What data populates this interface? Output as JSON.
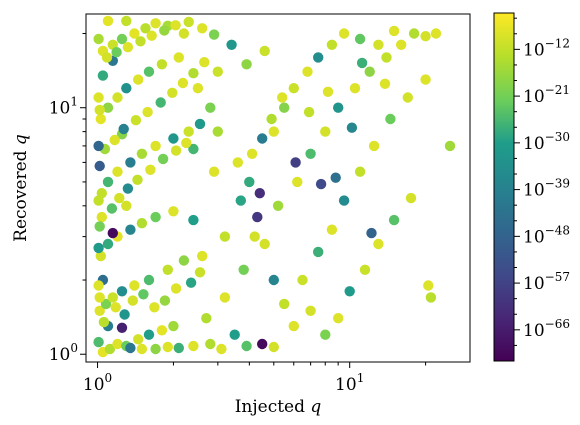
{
  "chart_data": {
    "type": "scatter",
    "title": "",
    "xlabel": "Injected",
    "ylabel": "Recovered",
    "axis_variable": "q",
    "xscale": "log",
    "yscale": "log",
    "xlim": [
      0.9,
      30
    ],
    "ylim": [
      0.93,
      24
    ],
    "x_ticks": [
      {
        "value": 1,
        "label_base": "10",
        "label_exp": "0"
      },
      {
        "value": 10,
        "label_base": "10",
        "label_exp": "1"
      }
    ],
    "y_ticks": [
      {
        "value": 1,
        "label_base": "10",
        "label_exp": "0"
      },
      {
        "value": 10,
        "label_base": "10",
        "label_exp": "1"
      }
    ],
    "grid": false,
    "colormap": "viridis",
    "colorbar": {
      "scale": "log",
      "range_exponent": [
        -72,
        -5
      ],
      "ticks": [
        {
          "exp": -12,
          "label_base": "10",
          "label_exp": "−12"
        },
        {
          "exp": -21,
          "label_base": "10",
          "label_exp": "−21"
        },
        {
          "exp": -30,
          "label_base": "10",
          "label_exp": "−30"
        },
        {
          "exp": -39,
          "label_base": "10",
          "label_exp": "−39"
        },
        {
          "exp": -48,
          "label_base": "10",
          "label_exp": "−48"
        },
        {
          "exp": -57,
          "label_base": "10",
          "label_exp": "−57"
        },
        {
          "exp": -66,
          "label_base": "10",
          "label_exp": "−66"
        }
      ]
    },
    "marker_size": 5.2,
    "points": [
      [
        1.05,
        1.02,
        -8
      ],
      [
        1.12,
        1.05,
        -14
      ],
      [
        1.2,
        1.1,
        -9
      ],
      [
        1.3,
        1.08,
        -22
      ],
      [
        1.45,
        1.15,
        -10
      ],
      [
        1.6,
        1.2,
        -30
      ],
      [
        1.8,
        1.25,
        -8
      ],
      [
        2.0,
        1.3,
        -16
      ],
      [
        1.1,
        1.3,
        -40
      ],
      [
        1.25,
        1.28,
        -65
      ],
      [
        1.02,
        1.5,
        -9
      ],
      [
        1.08,
        1.6,
        -20
      ],
      [
        1.15,
        1.7,
        -11
      ],
      [
        1.25,
        1.8,
        -35
      ],
      [
        1.4,
        1.9,
        -9
      ],
      [
        1.6,
        2.0,
        -25
      ],
      [
        1.9,
        2.2,
        -12
      ],
      [
        2.2,
        2.4,
        -18
      ],
      [
        2.6,
        2.5,
        -9
      ],
      [
        1.05,
        2.0,
        -45
      ],
      [
        1.03,
        2.5,
        -10
      ],
      [
        1.1,
        2.8,
        -28
      ],
      [
        1.2,
        3.0,
        -8
      ],
      [
        1.35,
        3.2,
        -38
      ],
      [
        1.5,
        3.4,
        -14
      ],
      [
        1.7,
        3.6,
        -22
      ],
      [
        2.0,
        3.8,
        -9
      ],
      [
        2.4,
        3.5,
        -30
      ],
      [
        1.15,
        3.1,
        -70
      ],
      [
        1.3,
        4.0,
        -10
      ],
      [
        1.04,
        4.5,
        -12
      ],
      [
        1.1,
        5.0,
        -26
      ],
      [
        1.2,
        5.5,
        -9
      ],
      [
        1.35,
        6.0,
        -40
      ],
      [
        1.5,
        6.5,
        -15
      ],
      [
        1.7,
        7.0,
        -9
      ],
      [
        2.0,
        7.5,
        -32
      ],
      [
        2.3,
        8.0,
        -11
      ],
      [
        1.02,
        5.8,
        -50
      ],
      [
        1.25,
        7.8,
        -19
      ],
      [
        1.03,
        9.0,
        -8
      ],
      [
        1.1,
        10.0,
        -18
      ],
      [
        1.2,
        11.0,
        -10
      ],
      [
        1.3,
        12.0,
        -34
      ],
      [
        1.45,
        13.0,
        -9
      ],
      [
        1.6,
        14.0,
        -24
      ],
      [
        1.8,
        15.0,
        -12
      ],
      [
        2.1,
        16.0,
        -9
      ],
      [
        1.05,
        13.5,
        -28
      ],
      [
        1.15,
        15.5,
        -42
      ],
      [
        1.05,
        17.0,
        -9
      ],
      [
        1.15,
        18.0,
        -11
      ],
      [
        1.25,
        19.0,
        -21
      ],
      [
        1.4,
        20.0,
        -8
      ],
      [
        1.55,
        21.0,
        -13
      ],
      [
        1.7,
        22.0,
        -9
      ],
      [
        1.9,
        21.5,
        -15
      ],
      [
        2.2,
        20.0,
        -10
      ],
      [
        1.1,
        22.5,
        -8
      ],
      [
        1.3,
        22.5,
        -12
      ],
      [
        2.5,
        12.0,
        -9
      ],
      [
        2.8,
        10.0,
        -20
      ],
      [
        3.0,
        14.0,
        -11
      ],
      [
        3.4,
        18.0,
        -32
      ],
      [
        3.0,
        8.0,
        -15
      ],
      [
        3.6,
        6.0,
        -9
      ],
      [
        4.0,
        5.0,
        -28
      ],
      [
        4.3,
        3.6,
        -60
      ],
      [
        4.6,
        2.8,
        -10
      ],
      [
        5.0,
        2.0,
        -38
      ],
      [
        5.5,
        1.6,
        -12
      ],
      [
        6.0,
        1.3,
        -9
      ],
      [
        4.5,
        1.1,
        -70
      ],
      [
        3.5,
        1.2,
        -30
      ],
      [
        2.7,
        1.4,
        -14
      ],
      [
        3.2,
        1.7,
        -9
      ],
      [
        3.8,
        2.2,
        -21
      ],
      [
        4.2,
        3.0,
        -10
      ],
      [
        5.2,
        4.0,
        -16
      ],
      [
        6.2,
        5.0,
        -9
      ],
      [
        7.0,
        6.5,
        -25
      ],
      [
        8.0,
        8.0,
        -10
      ],
      [
        9.0,
        10.0,
        -33
      ],
      [
        10.5,
        12.0,
        -9
      ],
      [
        12.0,
        14.0,
        -18
      ],
      [
        14.0,
        16.0,
        -12
      ],
      [
        16.0,
        18.0,
        -9
      ],
      [
        18.0,
        20.0,
        -14
      ],
      [
        20.0,
        19.5,
        -10
      ],
      [
        22.0,
        20.0,
        -9
      ],
      [
        6.5,
        2.0,
        -11
      ],
      [
        7.5,
        2.6,
        -27
      ],
      [
        8.5,
        3.2,
        -9
      ],
      [
        9.5,
        4.2,
        -36
      ],
      [
        11.0,
        5.5,
        -12
      ],
      [
        12.5,
        7.0,
        -9
      ],
      [
        14.5,
        9.0,
        -22
      ],
      [
        17.0,
        11.0,
        -10
      ],
      [
        20.0,
        13.0,
        -9
      ],
      [
        25.0,
        7.0,
        -16
      ],
      [
        7.0,
        1.5,
        -10
      ],
      [
        8.0,
        1.2,
        -20
      ],
      [
        9.0,
        1.4,
        -9
      ],
      [
        10.0,
        1.8,
        -31
      ],
      [
        11.5,
        2.2,
        -11
      ],
      [
        13.0,
        2.8,
        -9
      ],
      [
        15.0,
        3.5,
        -24
      ],
      [
        17.5,
        4.3,
        -10
      ],
      [
        20.5,
        1.9,
        -9
      ],
      [
        21.0,
        1.7,
        -13
      ],
      [
        5.0,
        8.0,
        -9
      ],
      [
        5.5,
        10.0,
        -19
      ],
      [
        6.0,
        12.0,
        -11
      ],
      [
        6.8,
        14.0,
        -9
      ],
      [
        7.5,
        16.0,
        -35
      ],
      [
        8.5,
        18.0,
        -12
      ],
      [
        9.5,
        20.0,
        -9
      ],
      [
        11.0,
        19.0,
        -23
      ],
      [
        13.0,
        18.0,
        -10
      ],
      [
        15.0,
        20.5,
        -9
      ],
      [
        3.2,
        3.0,
        -12
      ],
      [
        3.7,
        4.2,
        -29
      ],
      [
        4.1,
        6.5,
        -9
      ],
      [
        4.5,
        7.5,
        -41
      ],
      [
        4.9,
        9.0,
        -14
      ],
      [
        5.4,
        11.0,
        -9
      ],
      [
        3.9,
        15.0,
        -18
      ],
      [
        4.6,
        17.0,
        -11
      ],
      [
        2.9,
        5.5,
        -9
      ],
      [
        2.4,
        6.8,
        -26
      ],
      [
        4.4,
        4.5,
        -62
      ],
      [
        6.1,
        6.0,
        -58
      ],
      [
        7.7,
        4.9,
        -55
      ],
      [
        8.8,
        5.2,
        -44
      ],
      [
        10.2,
        8.3,
        -37
      ],
      [
        12.2,
        3.1,
        -48
      ],
      [
        6.9,
        9.6,
        -12
      ],
      [
        8.2,
        11.6,
        -9
      ],
      [
        11.2,
        15.2,
        -27
      ],
      [
        13.8,
        12.5,
        -9
      ],
      [
        1.06,
        1.35,
        -13
      ],
      [
        1.18,
        1.55,
        -9
      ],
      [
        1.28,
        1.45,
        -33
      ],
      [
        1.38,
        1.65,
        -10
      ],
      [
        1.52,
        1.75,
        -23
      ],
      [
        1.68,
        1.55,
        -9
      ],
      [
        1.85,
        1.65,
        -17
      ],
      [
        2.05,
        1.85,
        -9
      ],
      [
        2.35,
        1.95,
        -29
      ],
      [
        2.55,
        2.15,
        -11
      ],
      [
        1.04,
        3.6,
        -9
      ],
      [
        1.14,
        3.9,
        -24
      ],
      [
        1.22,
        4.3,
        -10
      ],
      [
        1.32,
        4.7,
        -36
      ],
      [
        1.44,
        5.1,
        -12
      ],
      [
        1.62,
        5.6,
        -9
      ],
      [
        1.82,
        6.2,
        -21
      ],
      [
        2.05,
        6.7,
        -10
      ],
      [
        2.25,
        7.2,
        -9
      ],
      [
        2.55,
        8.6,
        -31
      ],
      [
        1.07,
        6.8,
        -16
      ],
      [
        1.17,
        7.4,
        -9
      ],
      [
        1.27,
        8.2,
        -39
      ],
      [
        1.42,
        8.9,
        -11
      ],
      [
        1.58,
        9.6,
        -9
      ],
      [
        1.78,
        10.5,
        -26
      ],
      [
        1.98,
        11.5,
        -10
      ],
      [
        2.18,
        12.6,
        -9
      ],
      [
        2.4,
        13.8,
        -14
      ],
      [
        2.65,
        15.3,
        -9
      ],
      [
        1.09,
        16.0,
        -10
      ],
      [
        1.19,
        16.8,
        -22
      ],
      [
        1.32,
        17.6,
        -9
      ],
      [
        1.48,
        18.6,
        -12
      ],
      [
        1.64,
        19.6,
        -9
      ],
      [
        1.84,
        20.6,
        -17
      ],
      [
        2.04,
        21.6,
        -9
      ],
      [
        2.3,
        22.3,
        -11
      ],
      [
        2.6,
        21.0,
        -9
      ],
      [
        2.9,
        19.8,
        -20
      ],
      [
        1.01,
        1.12,
        -25
      ],
      [
        1.01,
        1.9,
        -9
      ],
      [
        1.01,
        2.7,
        -31
      ],
      [
        1.01,
        4.2,
        -12
      ],
      [
        1.01,
        7.0,
        -47
      ],
      [
        1.01,
        11.0,
        -9
      ],
      [
        1.01,
        19.0,
        -15
      ],
      [
        1.02,
        1.7,
        -9
      ],
      [
        1.02,
        3.3,
        -21
      ],
      [
        1.02,
        9.8,
        -10
      ],
      [
        1.5,
        1.05,
        -9
      ],
      [
        1.7,
        1.05,
        -18
      ],
      [
        1.9,
        1.07,
        -9
      ],
      [
        2.1,
        1.06,
        -27
      ],
      [
        2.4,
        1.08,
        -9
      ],
      [
        2.8,
        1.1,
        -14
      ],
      [
        3.1,
        1.05,
        -9
      ],
      [
        3.9,
        1.08,
        -24
      ],
      [
        5.0,
        1.07,
        -10
      ],
      [
        1.35,
        1.06,
        -42
      ]
    ]
  }
}
